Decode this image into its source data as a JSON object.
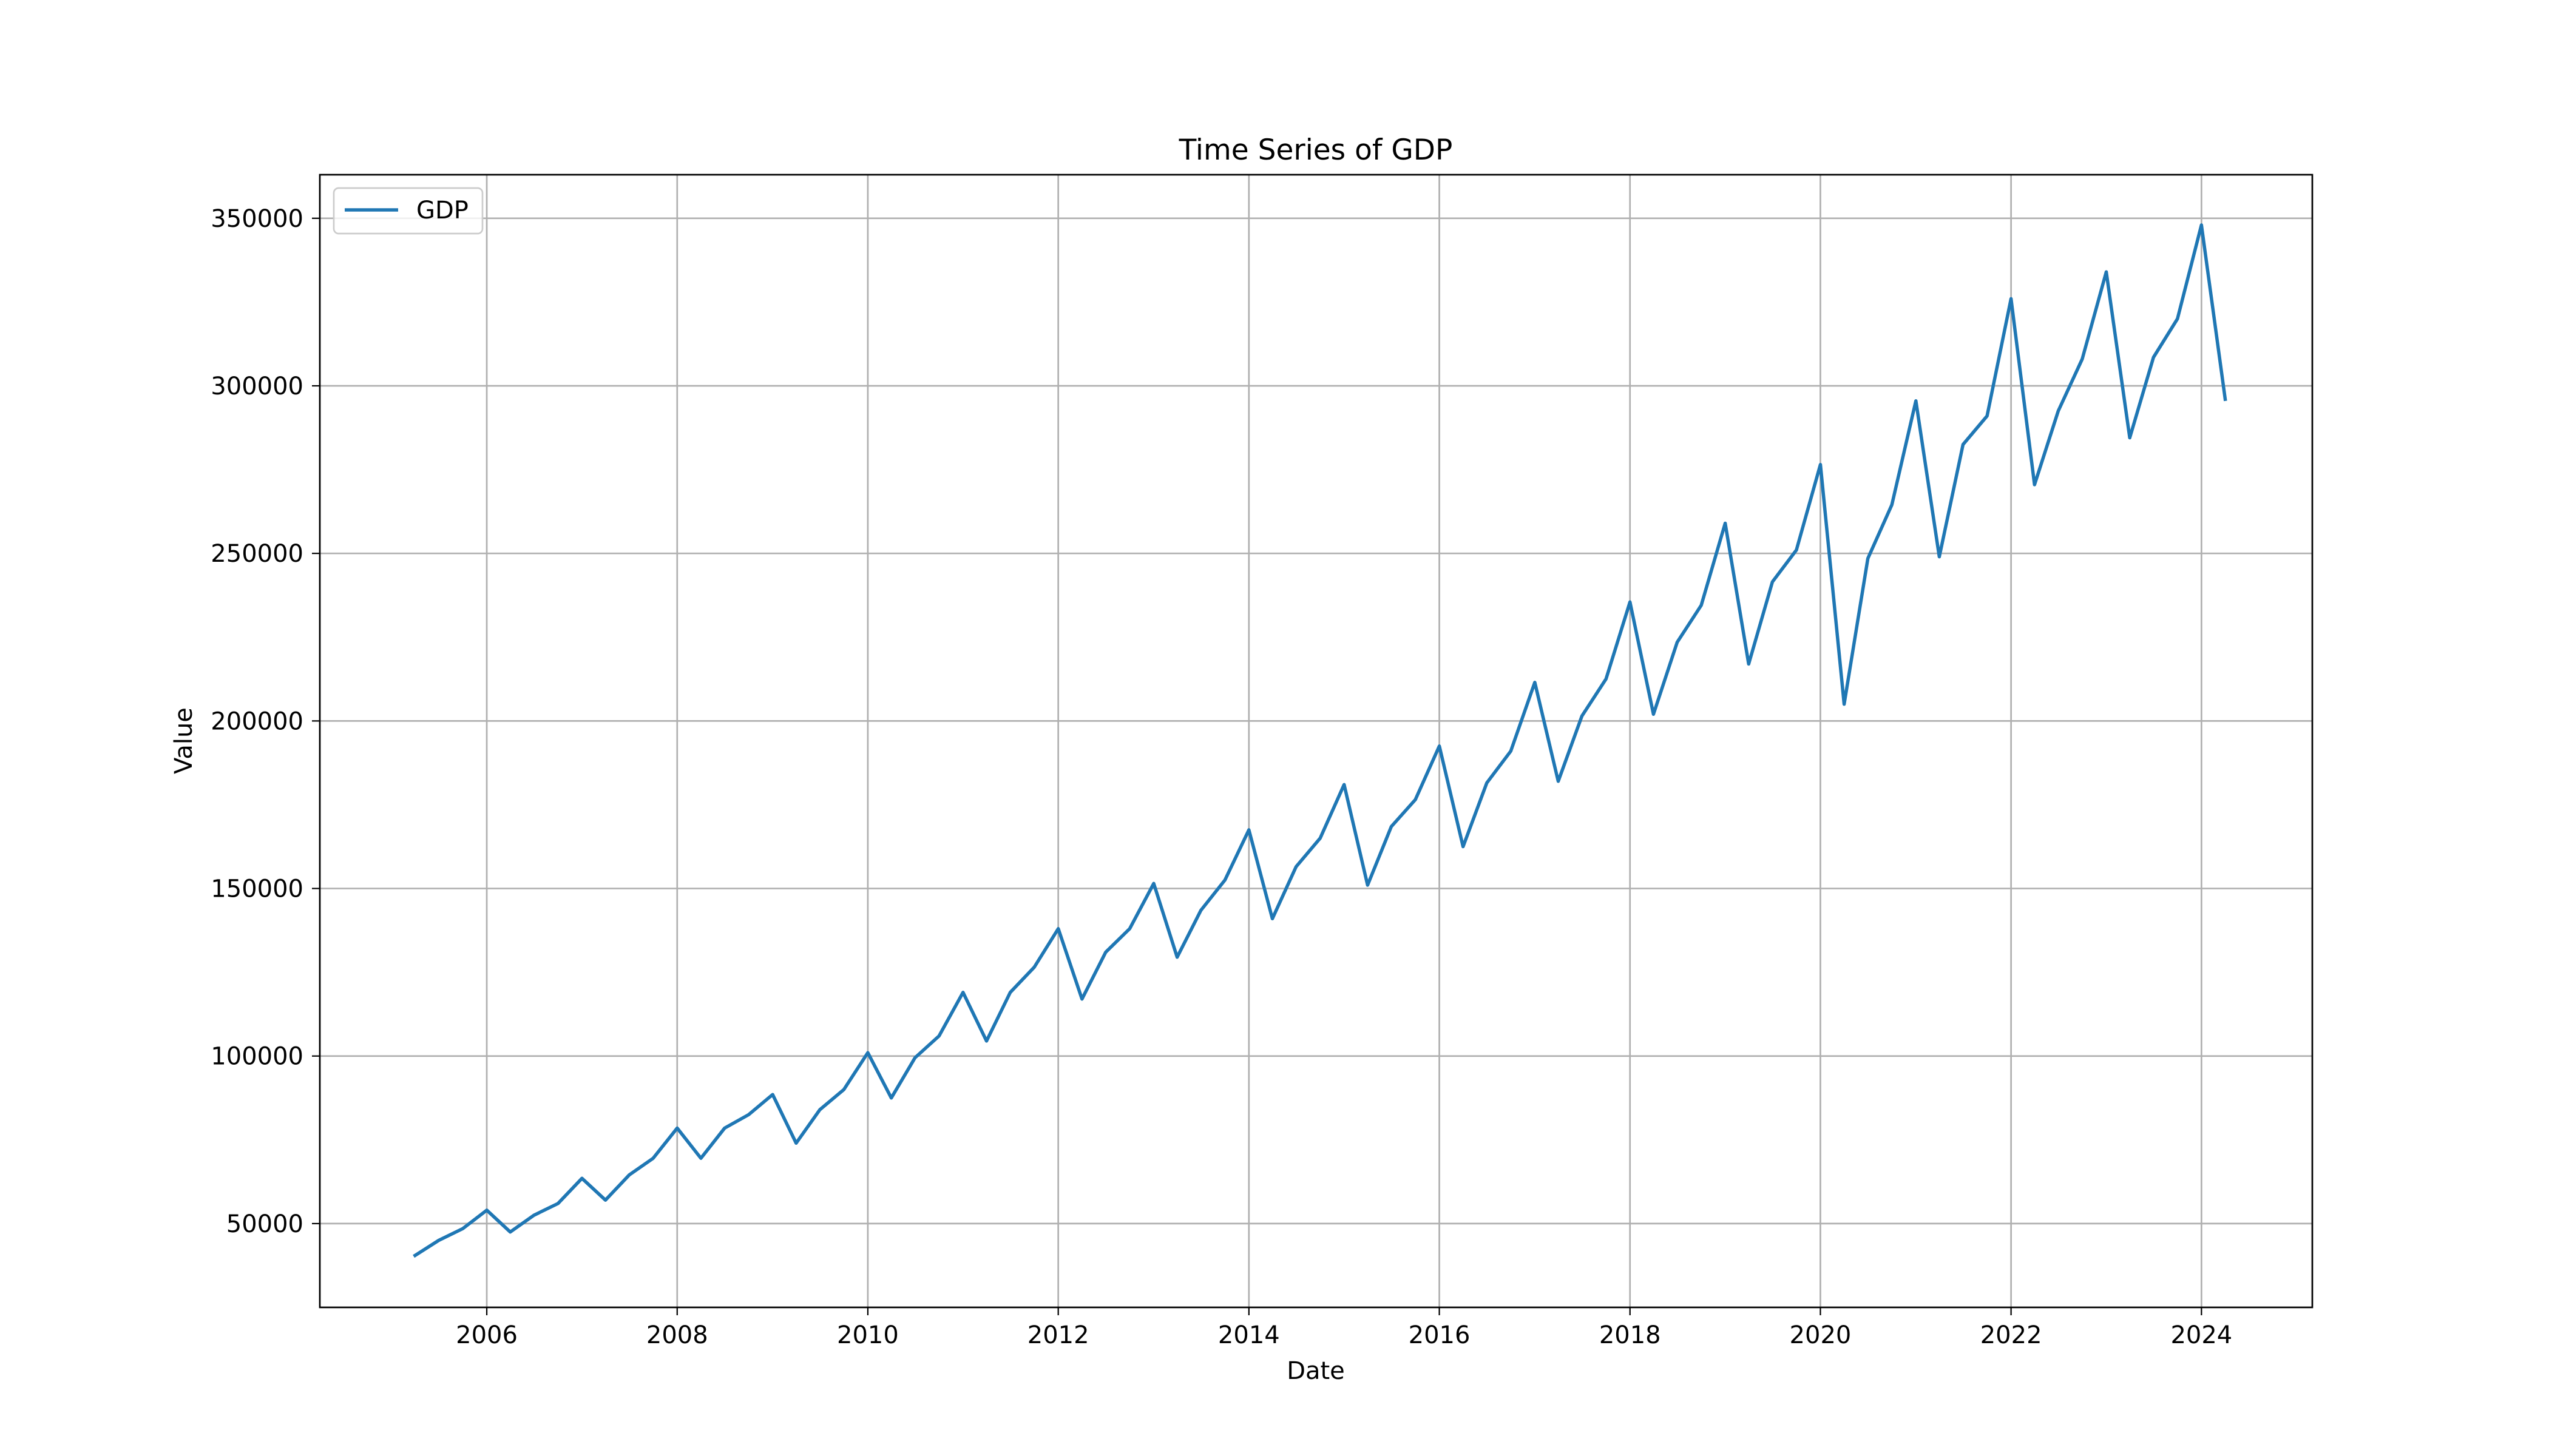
{
  "chart_data": {
    "type": "line",
    "title": "Time Series of GDP",
    "xlabel": "Date",
    "ylabel": "Value",
    "grid": true,
    "legend": {
      "entries": [
        "GDP"
      ],
      "placement": "top-left"
    },
    "xlim": [
      "2004-04-01",
      "2025-03-01"
    ],
    "ylim": [
      25000,
      363000
    ],
    "x_ticks": [
      "2006",
      "2008",
      "2010",
      "2012",
      "2014",
      "2016",
      "2018",
      "2020",
      "2022",
      "2024"
    ],
    "y_ticks": [
      50000,
      100000,
      150000,
      200000,
      250000,
      300000,
      350000
    ],
    "series": [
      {
        "name": "GDP",
        "color": "#1f77b4",
        "x": [
          "2005-04-01",
          "2005-07-01",
          "2005-10-01",
          "2006-01-01",
          "2006-04-01",
          "2006-07-01",
          "2006-10-01",
          "2007-01-01",
          "2007-04-01",
          "2007-07-01",
          "2007-10-01",
          "2008-01-01",
          "2008-04-01",
          "2008-07-01",
          "2008-10-01",
          "2009-01-01",
          "2009-04-01",
          "2009-07-01",
          "2009-10-01",
          "2010-01-01",
          "2010-04-01",
          "2010-07-01",
          "2010-10-01",
          "2011-01-01",
          "2011-04-01",
          "2011-07-01",
          "2011-10-01",
          "2012-01-01",
          "2012-04-01",
          "2012-07-01",
          "2012-10-01",
          "2013-01-01",
          "2013-04-01",
          "2013-07-01",
          "2013-10-01",
          "2014-01-01",
          "2014-04-01",
          "2014-07-01",
          "2014-10-01",
          "2015-01-01",
          "2015-04-01",
          "2015-07-01",
          "2015-10-01",
          "2016-01-01",
          "2016-04-01",
          "2016-07-01",
          "2016-10-01",
          "2017-01-01",
          "2017-04-01",
          "2017-07-01",
          "2017-10-01",
          "2018-01-01",
          "2018-04-01",
          "2018-07-01",
          "2018-10-01",
          "2019-01-01",
          "2019-04-01",
          "2019-07-01",
          "2019-10-01",
          "2020-01-01",
          "2020-04-01",
          "2020-07-01",
          "2020-10-01",
          "2021-01-01",
          "2021-04-01",
          "2021-07-01",
          "2021-10-01",
          "2022-01-01",
          "2022-04-01",
          "2022-07-01",
          "2022-10-01",
          "2023-01-01",
          "2023-04-01",
          "2023-07-01",
          "2023-10-01",
          "2024-01-01",
          "2024-04-01"
        ],
        "values": [
          40500,
          45000,
          48500,
          54000,
          47500,
          52500,
          56000,
          63500,
          57000,
          64500,
          69500,
          78500,
          69500,
          78500,
          82500,
          88500,
          74000,
          84000,
          90000,
          101000,
          87500,
          99500,
          106000,
          119000,
          104500,
          119000,
          126500,
          138000,
          117000,
          131000,
          138000,
          151500,
          129500,
          143500,
          152500,
          167500,
          141000,
          156500,
          165000,
          181000,
          151000,
          168500,
          176500,
          192500,
          162500,
          181500,
          191000,
          211500,
          182000,
          201500,
          212500,
          235500,
          202000,
          223500,
          234500,
          259000,
          217000,
          241500,
          251000,
          276500,
          205000,
          248500,
          264500,
          295500,
          249000,
          282500,
          291000,
          326000,
          270500,
          292500,
          308000,
          334000,
          284500,
          308500,
          320000,
          348000,
          296000
        ]
      }
    ]
  }
}
